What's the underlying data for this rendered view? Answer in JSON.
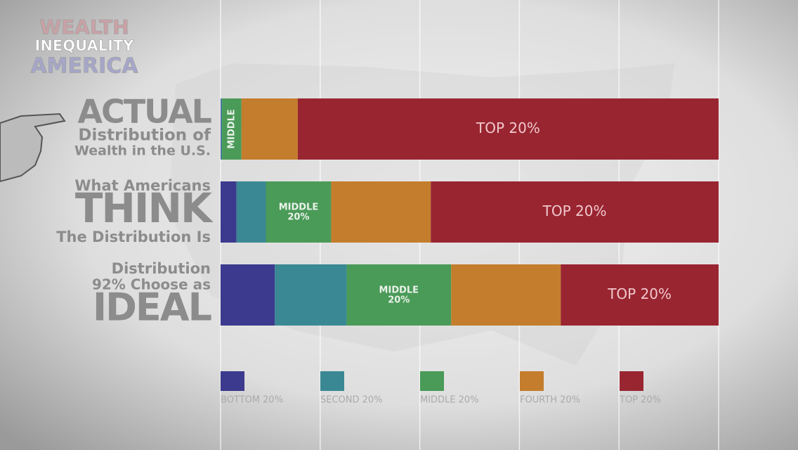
{
  "chart_data": {
    "type": "stacked-bar-horizontal",
    "title": [
      "WEALTH",
      "INEQUALITY",
      "AMERICA"
    ],
    "categories": [
      [
        "ACTUAL",
        "Distribution of",
        "Wealth in the U.S."
      ],
      [
        "What Americans",
        "THINK",
        "The Distribution Is"
      ],
      [
        "Distribution",
        "92% Choose as",
        "IDEAL"
      ]
    ],
    "series": [
      {
        "name": "BOTTOM 20%",
        "color": "#3b3a8e",
        "values": [
          0.1,
          3.2,
          10.9
        ],
        "labels": [
          null,
          null,
          null
        ]
      },
      {
        "name": "SECOND 20%",
        "color": "#3a8894",
        "values": [
          0.2,
          5.9,
          14.4
        ],
        "labels": [
          null,
          null,
          null
        ]
      },
      {
        "name": "MIDDLE 20%",
        "color": "#4a9a58",
        "values": [
          3.9,
          13.1,
          21.0
        ],
        "labels": [
          "MIDDLE",
          "MIDDLE 20%",
          "MIDDLE 20%"
        ]
      },
      {
        "name": "FOURTH 20%",
        "color": "#c47d2c",
        "values": [
          11.3,
          20.0,
          22.0
        ],
        "labels": [
          null,
          null,
          null
        ]
      },
      {
        "name": "TOP 20%",
        "color": "#992531",
        "values": [
          84.5,
          57.8,
          31.7
        ],
        "labels": [
          "TOP 20%",
          "TOP 20%",
          "TOP 20%"
        ]
      }
    ],
    "xlim": [
      0,
      100
    ],
    "xticks": [
      0,
      20,
      40,
      60,
      80,
      100
    ],
    "grid": true
  }
}
